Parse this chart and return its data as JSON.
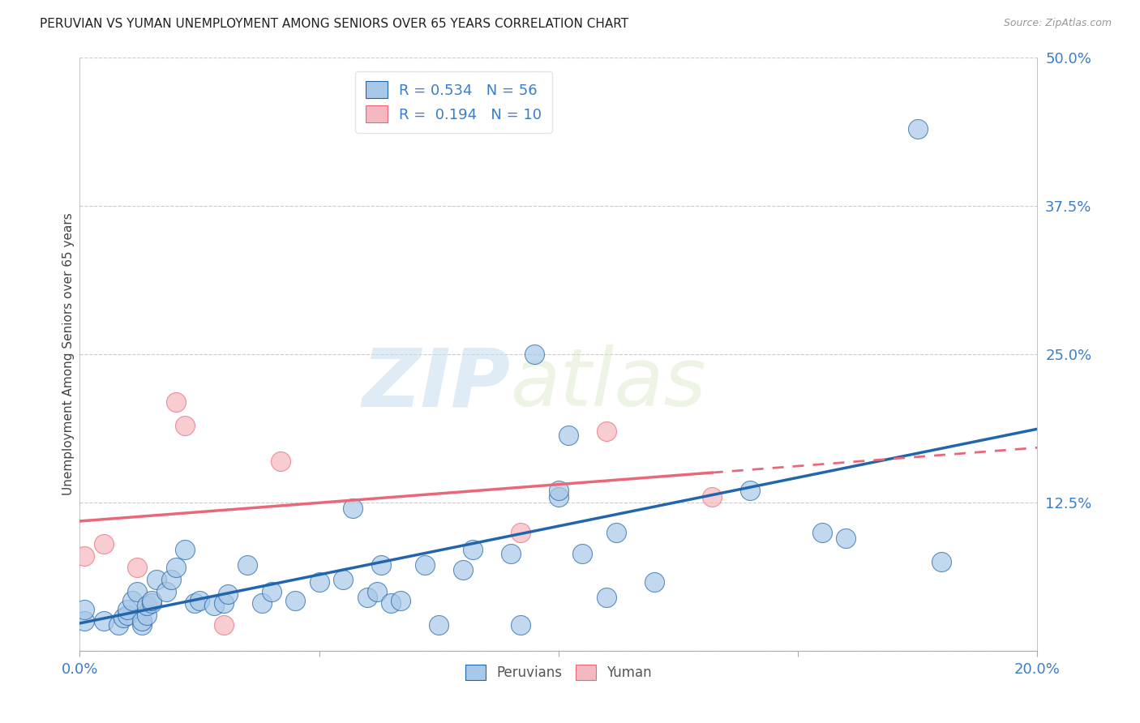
{
  "title": "PERUVIAN VS YUMAN UNEMPLOYMENT AMONG SENIORS OVER 65 YEARS CORRELATION CHART",
  "source": "Source: ZipAtlas.com",
  "ylabel": "Unemployment Among Seniors over 65 years",
  "xlim": [
    0.0,
    0.2
  ],
  "ylim": [
    0.0,
    0.5
  ],
  "xticks": [
    0.0,
    0.05,
    0.1,
    0.15,
    0.2
  ],
  "xtick_labels": [
    "0.0%",
    "",
    "",
    "",
    "20.0%"
  ],
  "yticks": [
    0.0,
    0.125,
    0.25,
    0.375,
    0.5
  ],
  "ytick_labels": [
    "",
    "12.5%",
    "25.0%",
    "37.5%",
    "50.0%"
  ],
  "peruvian_color": "#a8c8e8",
  "yuman_color": "#f4b8c0",
  "peruvian_line_color": "#2166ac",
  "yuman_line_color": "#e8687a",
  "R_peruvian": 0.534,
  "N_peruvian": 56,
  "R_yuman": 0.194,
  "N_yuman": 10,
  "watermark_zip": "ZIP",
  "watermark_atlas": "atlas",
  "peruvian_x": [
    0.001,
    0.001,
    0.005,
    0.008,
    0.009,
    0.01,
    0.01,
    0.011,
    0.012,
    0.013,
    0.013,
    0.014,
    0.014,
    0.015,
    0.015,
    0.016,
    0.018,
    0.019,
    0.02,
    0.022,
    0.024,
    0.025,
    0.028,
    0.03,
    0.031,
    0.035,
    0.038,
    0.04,
    0.045,
    0.05,
    0.055,
    0.057,
    0.06,
    0.062,
    0.063,
    0.065,
    0.067,
    0.072,
    0.075,
    0.08,
    0.082,
    0.09,
    0.092,
    0.095,
    0.1,
    0.1,
    0.102,
    0.105,
    0.11,
    0.112,
    0.12,
    0.14,
    0.155,
    0.16,
    0.175,
    0.18
  ],
  "peruvian_y": [
    0.025,
    0.035,
    0.025,
    0.022,
    0.028,
    0.03,
    0.035,
    0.042,
    0.05,
    0.022,
    0.025,
    0.03,
    0.038,
    0.04,
    0.042,
    0.06,
    0.05,
    0.06,
    0.07,
    0.085,
    0.04,
    0.042,
    0.038,
    0.04,
    0.048,
    0.072,
    0.04,
    0.05,
    0.042,
    0.058,
    0.06,
    0.12,
    0.045,
    0.05,
    0.072,
    0.04,
    0.042,
    0.072,
    0.022,
    0.068,
    0.085,
    0.082,
    0.022,
    0.25,
    0.13,
    0.135,
    0.182,
    0.082,
    0.045,
    0.1,
    0.058,
    0.135,
    0.1,
    0.095,
    0.44,
    0.075
  ],
  "yuman_x": [
    0.001,
    0.005,
    0.012,
    0.02,
    0.022,
    0.03,
    0.042,
    0.092,
    0.11,
    0.132
  ],
  "yuman_y": [
    0.08,
    0.09,
    0.07,
    0.21,
    0.19,
    0.022,
    0.16,
    0.1,
    0.185,
    0.13
  ]
}
